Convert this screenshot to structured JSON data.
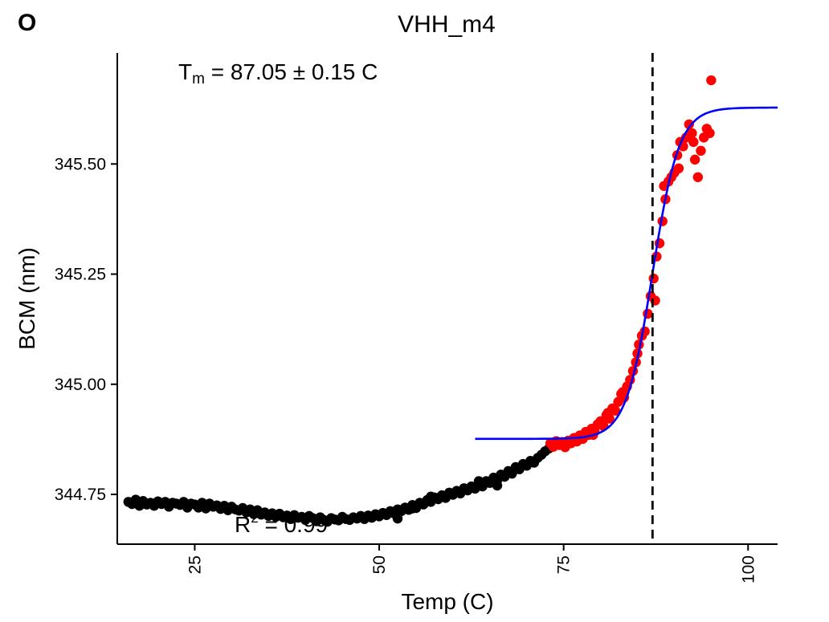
{
  "panel_label": "O",
  "chart_data": {
    "type": "scatter",
    "title": "VHH_m4",
    "xlabel": "Temp (C)",
    "ylabel": "BCM (nm)",
    "xlim": [
      14.5,
      104
    ],
    "ylim": [
      344.637,
      345.752
    ],
    "x_ticks": [
      25,
      50,
      75,
      100
    ],
    "x_tick_labels": [
      "25",
      "50",
      "75",
      "100"
    ],
    "y_ticks": [
      344.75,
      345.0,
      345.25,
      345.5
    ],
    "y_tick_labels": [
      "344.75",
      "345.00",
      "345.25",
      "345.50"
    ],
    "grid": false,
    "legend": "none",
    "annotations": {
      "tm_symbol": "T",
      "tm_subscript": "m",
      "tm_text": " =  87.05 ± 0.15 C",
      "r2_symbol": "R",
      "r2_superscript": "2",
      "r2_text": " =  0.99"
    },
    "vline": {
      "x": 87.05,
      "style": "dashed",
      "color": "#000000"
    },
    "series": [
      {
        "color": "#000000",
        "role": "all points",
        "points": [
          [
            16.0,
            344.733
          ],
          [
            16.5,
            344.728
          ],
          [
            17.0,
            344.738
          ],
          [
            17.5,
            344.724
          ],
          [
            18.0,
            344.735
          ],
          [
            18.5,
            344.727
          ],
          [
            19.0,
            344.731
          ],
          [
            19.5,
            344.724
          ],
          [
            20.0,
            344.734
          ],
          [
            20.5,
            344.728
          ],
          [
            21.0,
            344.733
          ],
          [
            21.5,
            344.722
          ],
          [
            22.0,
            344.731
          ],
          [
            22.5,
            344.729
          ],
          [
            23.0,
            344.726
          ],
          [
            23.5,
            344.733
          ],
          [
            24.0,
            344.72
          ],
          [
            24.5,
            344.729
          ],
          [
            25.0,
            344.727
          ],
          [
            25.5,
            344.72
          ],
          [
            26.0,
            344.731
          ],
          [
            26.5,
            344.718
          ],
          [
            27.0,
            344.729
          ],
          [
            27.5,
            344.722
          ],
          [
            28.0,
            344.725
          ],
          [
            28.5,
            344.717
          ],
          [
            29.0,
            344.724
          ],
          [
            29.5,
            344.714
          ],
          [
            30.0,
            344.722
          ],
          [
            30.5,
            344.716
          ],
          [
            31.0,
            344.713
          ],
          [
            31.5,
            344.719
          ],
          [
            32.0,
            344.709
          ],
          [
            32.5,
            344.716
          ],
          [
            33.0,
            344.705
          ],
          [
            33.5,
            344.714
          ],
          [
            34.0,
            344.704
          ],
          [
            34.5,
            344.709
          ],
          [
            35.0,
            344.701
          ],
          [
            35.5,
            344.707
          ],
          [
            36.0,
            344.699
          ],
          [
            36.5,
            344.706
          ],
          [
            37.0,
            344.698
          ],
          [
            37.5,
            344.702
          ],
          [
            38.0,
            344.694
          ],
          [
            38.5,
            344.703
          ],
          [
            39.0,
            344.697
          ],
          [
            39.5,
            344.699
          ],
          [
            40.0,
            344.692
          ],
          [
            40.5,
            344.701
          ],
          [
            41.0,
            344.696
          ],
          [
            41.5,
            344.689
          ],
          [
            42.0,
            344.698
          ],
          [
            42.5,
            344.692
          ],
          [
            43.0,
            344.688
          ],
          [
            43.5,
            344.696
          ],
          [
            44.0,
            344.693
          ],
          [
            44.5,
            344.691
          ],
          [
            45.0,
            344.699
          ],
          [
            45.5,
            344.694
          ],
          [
            46.0,
            344.692
          ],
          [
            46.5,
            344.698
          ],
          [
            47.0,
            344.695
          ],
          [
            47.5,
            344.701
          ],
          [
            48.0,
            344.694
          ],
          [
            48.5,
            344.702
          ],
          [
            49.0,
            344.697
          ],
          [
            49.5,
            344.705
          ],
          [
            50.0,
            344.7
          ],
          [
            50.5,
            344.708
          ],
          [
            51.0,
            344.703
          ],
          [
            51.5,
            344.712
          ],
          [
            52.0,
            344.707
          ],
          [
            52.5,
            344.716
          ],
          [
            53.0,
            344.712
          ],
          [
            53.5,
            344.72
          ],
          [
            54.0,
            344.715
          ],
          [
            54.5,
            344.726
          ],
          [
            55.0,
            344.719
          ],
          [
            55.5,
            344.731
          ],
          [
            56.0,
            344.727
          ],
          [
            56.5,
            344.737
          ],
          [
            57.0,
            344.733
          ],
          [
            57.5,
            344.743
          ],
          [
            58.0,
            344.739
          ],
          [
            58.5,
            344.748
          ],
          [
            59.0,
            344.742
          ],
          [
            59.5,
            344.754
          ],
          [
            60.0,
            344.749
          ],
          [
            60.5,
            344.758
          ],
          [
            61.0,
            344.752
          ],
          [
            61.5,
            344.764
          ],
          [
            62.0,
            344.759
          ],
          [
            62.5,
            344.768
          ],
          [
            63.0,
            344.763
          ],
          [
            63.5,
            344.773
          ],
          [
            64.0,
            344.768
          ],
          [
            64.5,
            344.78
          ],
          [
            65.0,
            344.776
          ],
          [
            65.5,
            344.788
          ],
          [
            66.0,
            344.782
          ],
          [
            66.5,
            344.795
          ],
          [
            67.0,
            344.79
          ],
          [
            67.5,
            344.803
          ],
          [
            68.0,
            344.797
          ],
          [
            68.5,
            344.812
          ],
          [
            69.0,
            344.807
          ],
          [
            69.5,
            344.819
          ],
          [
            70.0,
            344.815
          ],
          [
            70.5,
            344.826
          ],
          [
            71.0,
            344.822
          ],
          [
            71.5,
            344.833
          ],
          [
            72.0,
            344.84
          ],
          [
            72.5,
            344.848
          ],
          [
            73.0,
            344.854
          ],
          [
            52.5,
            344.695
          ],
          [
            54.5,
            344.718
          ],
          [
            57.0,
            344.745
          ],
          [
            63.5,
            344.78
          ],
          [
            66.0,
            344.77
          ]
        ]
      },
      {
        "color": "#ff0000",
        "role": "fitted region",
        "points": [
          [
            73.2,
            344.866
          ],
          [
            73.6,
            344.858
          ],
          [
            74.0,
            344.871
          ],
          [
            74.4,
            344.862
          ],
          [
            74.8,
            344.869
          ],
          [
            75.2,
            344.857
          ],
          [
            75.6,
            344.872
          ],
          [
            76.0,
            344.866
          ],
          [
            76.4,
            344.878
          ],
          [
            76.8,
            344.87
          ],
          [
            77.2,
            344.884
          ],
          [
            77.6,
            344.876
          ],
          [
            78.0,
            344.892
          ],
          [
            78.4,
            344.885
          ],
          [
            78.8,
            344.899
          ],
          [
            79.2,
            344.893
          ],
          [
            79.6,
            344.909
          ],
          [
            80.0,
            344.916
          ],
          [
            80.4,
            344.905
          ],
          [
            80.8,
            344.93
          ],
          [
            81.2,
            344.922
          ],
          [
            81.6,
            344.945
          ],
          [
            82.0,
            344.94
          ],
          [
            82.4,
            344.96
          ],
          [
            82.8,
            344.978
          ],
          [
            83.2,
            344.97
          ],
          [
            83.6,
            344.995
          ],
          [
            84.0,
            345.01
          ],
          [
            84.4,
            345.03
          ],
          [
            84.8,
            345.05
          ],
          [
            85.2,
            345.09
          ],
          [
            85.6,
            345.11
          ],
          [
            86.0,
            345.12
          ],
          [
            86.4,
            345.16
          ],
          [
            86.8,
            345.2
          ],
          [
            87.2,
            345.24
          ],
          [
            87.6,
            345.29
          ],
          [
            88.0,
            345.32
          ],
          [
            88.4,
            345.37
          ],
          [
            88.8,
            345.42
          ],
          [
            89.2,
            345.46
          ],
          [
            89.6,
            345.47
          ],
          [
            90.0,
            345.48
          ],
          [
            90.4,
            345.52
          ],
          [
            90.8,
            345.55
          ],
          [
            91.2,
            345.54
          ],
          [
            91.6,
            345.56
          ],
          [
            92.0,
            345.59
          ],
          [
            92.4,
            345.57
          ],
          [
            92.8,
            345.51
          ],
          [
            93.2,
            345.47
          ],
          [
            93.6,
            345.53
          ],
          [
            94.0,
            345.56
          ],
          [
            94.4,
            345.58
          ],
          [
            94.8,
            345.57
          ],
          [
            95.0,
            345.69
          ],
          [
            79.0,
            344.885
          ],
          [
            81.0,
            344.935
          ],
          [
            83.0,
            344.982
          ],
          [
            85.0,
            345.07
          ],
          [
            87.4,
            345.19
          ],
          [
            88.6,
            345.45
          ],
          [
            90.6,
            345.49
          ],
          [
            92.6,
            345.55
          ]
        ]
      }
    ],
    "fit_curve": {
      "color": "#0000ff",
      "model": "sigmoid",
      "x_range": [
        63.0,
        104.0
      ],
      "lower": 344.876,
      "upper": 345.628,
      "midpoint": 87.05,
      "slope": 1.8
    }
  }
}
